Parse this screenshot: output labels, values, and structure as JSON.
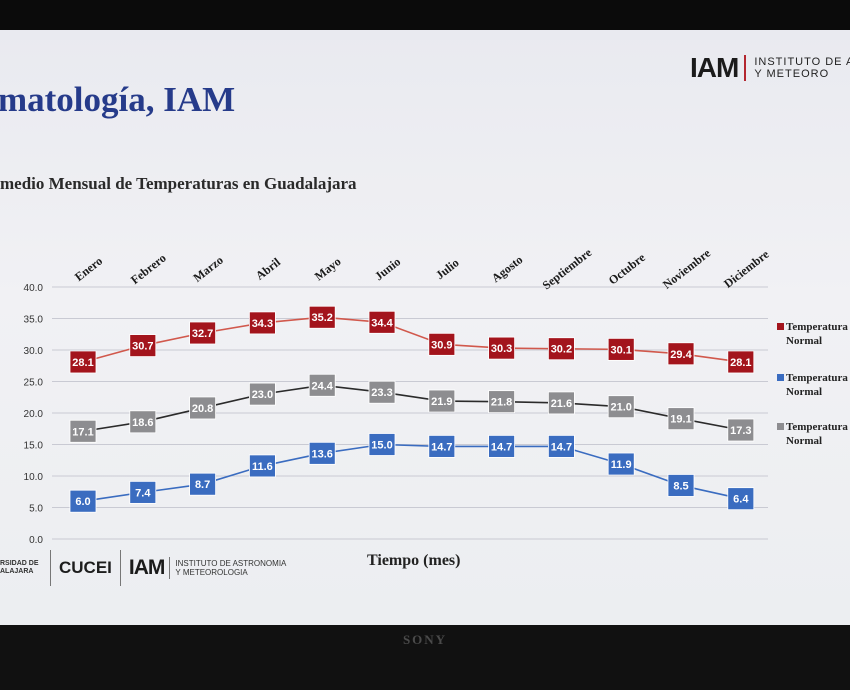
{
  "title": "matología, IAM",
  "subtitle": "medio Mensual de Temperaturas en Guadalajara",
  "logo_top": {
    "acronym": "IAM",
    "line1": "INSTITUTO DE ASTR",
    "line2": "Y METEORO"
  },
  "footer": {
    "udg_line1": "RSIDAD DE",
    "udg_line2": "ALAJARA",
    "cucei": "CUCEI",
    "iam": "IAM",
    "iam_line1": "INSTITUTO DE ASTRONOMIA",
    "iam_line2": "Y METEOROLOGIA"
  },
  "brand": "SONY",
  "chart_data": {
    "type": "line",
    "title": "medio Mensual de Temperaturas en Guadalajara",
    "xlabel": "Tiempo (mes)",
    "ylabel": "",
    "ylim": [
      0,
      40
    ],
    "yticks": [
      "0.0",
      "5.0",
      "10.0",
      "15.0",
      "20.0",
      "25.0",
      "30.0",
      "35.0",
      "40.0"
    ],
    "grid": true,
    "legend_position": "right",
    "categories": [
      "Enero",
      "Febrero",
      "Marzo",
      "Abril",
      "Mayo",
      "Junio",
      "Julio",
      "Agosto",
      "Septiembre",
      "Octubre",
      "Noviembre",
      "Diciembre"
    ],
    "series": [
      {
        "name": "Temperatura Normal",
        "legend_line1": "Temperatura",
        "legend_line2": "Normal",
        "color": "#a3141c",
        "line_color": "#d1584c",
        "values": [
          28.1,
          30.7,
          32.7,
          34.3,
          35.2,
          34.4,
          30.9,
          30.3,
          30.2,
          30.1,
          29.4,
          28.1
        ],
        "labels": [
          "28.1",
          "30.7",
          "32.7",
          "34.3",
          "35.2",
          "34.4",
          "30.9",
          "30.3",
          "30.2",
          "30.1",
          "29.4",
          "28.1"
        ]
      },
      {
        "name": "Temperatura Normal",
        "legend_line1": "Temperatura",
        "legend_line2": "Normal",
        "color": "#3a6cc0",
        "line_color": "#3a6cc0",
        "values": [
          6.0,
          7.4,
          8.7,
          11.6,
          13.6,
          15.0,
          14.7,
          14.7,
          14.7,
          11.9,
          8.5,
          6.4
        ],
        "labels": [
          "6.0",
          "7.4",
          "8.7",
          "11.6",
          "13.6",
          "15.0",
          "14.7",
          "14.7",
          "14.7",
          "11.9",
          "8.5",
          "6.4"
        ]
      },
      {
        "name": "Temperatura Normal",
        "legend_line1": "Temperatura",
        "legend_line2": "Normal",
        "color": "#8d8d90",
        "line_color": "#2b2b2b",
        "values": [
          17.1,
          18.6,
          20.8,
          23.0,
          24.4,
          23.3,
          21.9,
          21.8,
          21.6,
          21.0,
          19.1,
          17.3
        ],
        "labels": [
          "17.1",
          "18.6",
          "20.8",
          "23.0",
          "24.4",
          "23.3",
          "21.9",
          "21.8",
          "21.6",
          "21.0",
          "19.1",
          "17.3"
        ]
      }
    ]
  }
}
